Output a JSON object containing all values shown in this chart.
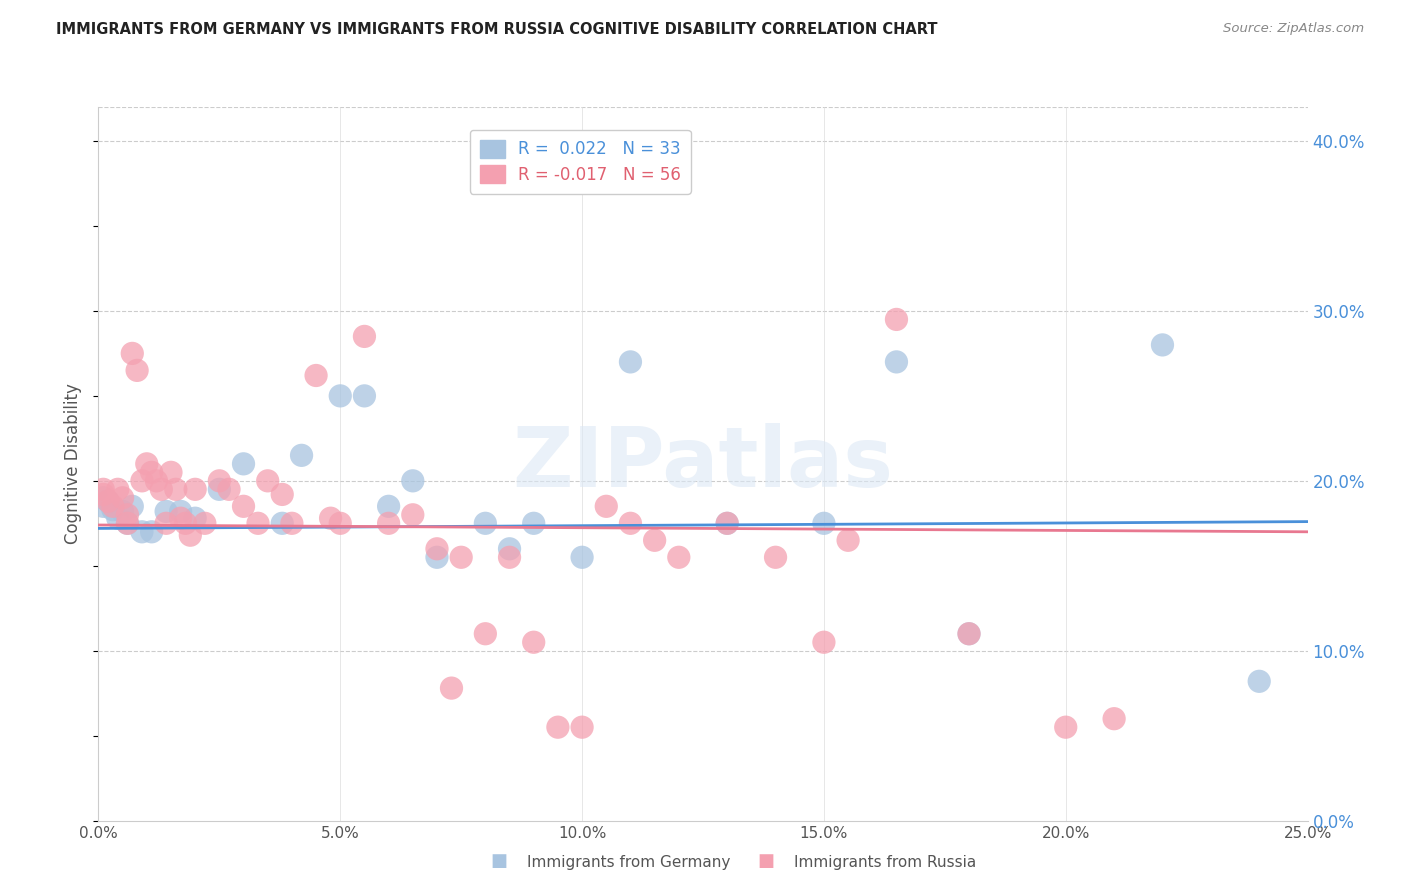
{
  "title": "IMMIGRANTS FROM GERMANY VS IMMIGRANTS FROM RUSSIA COGNITIVE DISABILITY CORRELATION CHART",
  "source": "Source: ZipAtlas.com",
  "xlabel_germany": "Immigrants from Germany",
  "xlabel_russia": "Immigrants from Russia",
  "ylabel": "Cognitive Disability",
  "watermark": "ZIPatlas",
  "germany_R": 0.022,
  "germany_N": 33,
  "russia_R": -0.017,
  "russia_N": 56,
  "xlim": [
    0.0,
    0.25
  ],
  "ylim": [
    0.0,
    0.42
  ],
  "germany_color": "#a8c4e0",
  "russia_color": "#f4a0b0",
  "germany_line_color": "#4a90d9",
  "russia_line_color": "#e87890",
  "germany_points": [
    [
      0.001,
      0.19
    ],
    [
      0.001,
      0.185
    ],
    [
      0.002,
      0.188
    ],
    [
      0.003,
      0.183
    ],
    [
      0.004,
      0.178
    ],
    [
      0.005,
      0.182
    ],
    [
      0.006,
      0.175
    ],
    [
      0.007,
      0.185
    ],
    [
      0.009,
      0.17
    ],
    [
      0.011,
      0.17
    ],
    [
      0.014,
      0.182
    ],
    [
      0.017,
      0.182
    ],
    [
      0.02,
      0.178
    ],
    [
      0.025,
      0.195
    ],
    [
      0.03,
      0.21
    ],
    [
      0.038,
      0.175
    ],
    [
      0.042,
      0.215
    ],
    [
      0.05,
      0.25
    ],
    [
      0.055,
      0.25
    ],
    [
      0.06,
      0.185
    ],
    [
      0.065,
      0.2
    ],
    [
      0.07,
      0.155
    ],
    [
      0.08,
      0.175
    ],
    [
      0.085,
      0.16
    ],
    [
      0.09,
      0.175
    ],
    [
      0.1,
      0.155
    ],
    [
      0.11,
      0.27
    ],
    [
      0.13,
      0.175
    ],
    [
      0.15,
      0.175
    ],
    [
      0.165,
      0.27
    ],
    [
      0.18,
      0.11
    ],
    [
      0.22,
      0.28
    ],
    [
      0.24,
      0.082
    ]
  ],
  "russia_points": [
    [
      0.001,
      0.195
    ],
    [
      0.001,
      0.192
    ],
    [
      0.002,
      0.188
    ],
    [
      0.003,
      0.185
    ],
    [
      0.004,
      0.195
    ],
    [
      0.005,
      0.19
    ],
    [
      0.006,
      0.18
    ],
    [
      0.006,
      0.175
    ],
    [
      0.007,
      0.275
    ],
    [
      0.008,
      0.265
    ],
    [
      0.009,
      0.2
    ],
    [
      0.01,
      0.21
    ],
    [
      0.011,
      0.205
    ],
    [
      0.012,
      0.2
    ],
    [
      0.013,
      0.195
    ],
    [
      0.014,
      0.175
    ],
    [
      0.015,
      0.205
    ],
    [
      0.016,
      0.195
    ],
    [
      0.017,
      0.178
    ],
    [
      0.018,
      0.175
    ],
    [
      0.019,
      0.168
    ],
    [
      0.02,
      0.195
    ],
    [
      0.022,
      0.175
    ],
    [
      0.025,
      0.2
    ],
    [
      0.027,
      0.195
    ],
    [
      0.03,
      0.185
    ],
    [
      0.033,
      0.175
    ],
    [
      0.035,
      0.2
    ],
    [
      0.038,
      0.192
    ],
    [
      0.04,
      0.175
    ],
    [
      0.045,
      0.262
    ],
    [
      0.048,
      0.178
    ],
    [
      0.05,
      0.175
    ],
    [
      0.055,
      0.285
    ],
    [
      0.06,
      0.175
    ],
    [
      0.065,
      0.18
    ],
    [
      0.07,
      0.16
    ],
    [
      0.073,
      0.078
    ],
    [
      0.075,
      0.155
    ],
    [
      0.08,
      0.11
    ],
    [
      0.085,
      0.155
    ],
    [
      0.09,
      0.105
    ],
    [
      0.095,
      0.055
    ],
    [
      0.1,
      0.055
    ],
    [
      0.105,
      0.185
    ],
    [
      0.11,
      0.175
    ],
    [
      0.115,
      0.165
    ],
    [
      0.12,
      0.155
    ],
    [
      0.13,
      0.175
    ],
    [
      0.14,
      0.155
    ],
    [
      0.15,
      0.105
    ],
    [
      0.155,
      0.165
    ],
    [
      0.165,
      0.295
    ],
    [
      0.18,
      0.11
    ],
    [
      0.2,
      0.055
    ],
    [
      0.21,
      0.06
    ]
  ],
  "germany_line": [
    [
      0.0,
      0.172
    ],
    [
      0.25,
      0.176
    ]
  ],
  "russia_line": [
    [
      0.0,
      0.174
    ],
    [
      0.25,
      0.17
    ]
  ]
}
